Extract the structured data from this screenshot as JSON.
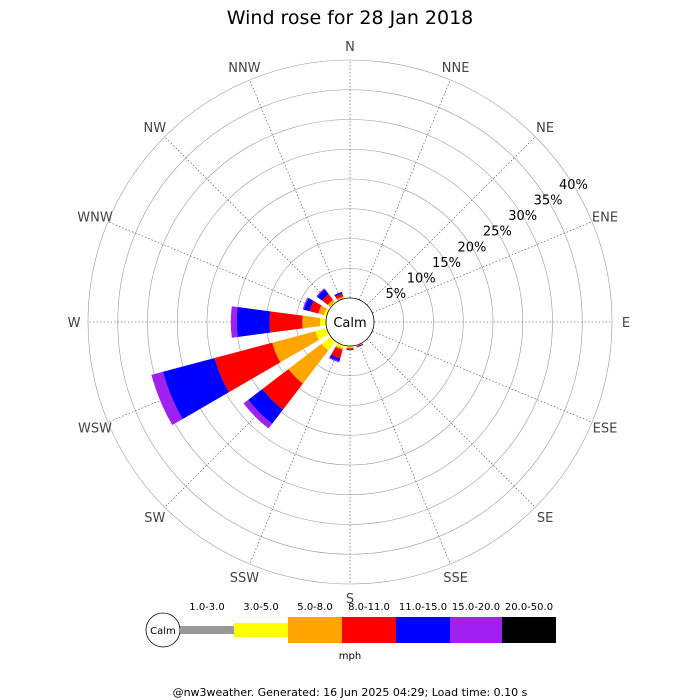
{
  "chart_data": {
    "type": "wind-rose",
    "title": "Wind rose for 28 Jan 2018",
    "calm_label": "Calm",
    "units": "mph",
    "directions": [
      "N",
      "NNE",
      "NE",
      "ENE",
      "E",
      "ESE",
      "SE",
      "SSE",
      "S",
      "SSW",
      "SW",
      "WSW",
      "W",
      "WNW",
      "NW",
      "NNW"
    ],
    "radial_ticks": [
      5,
      10,
      15,
      20,
      25,
      30,
      35,
      40
    ],
    "radial_tick_labels": [
      "5%",
      "10%",
      "15%",
      "20%",
      "25%",
      "30%",
      "35%",
      "40%"
    ],
    "rmax": 40,
    "bins": [
      {
        "label": "1.0-3.0",
        "color": "#999999"
      },
      {
        "label": "3.0-5.0",
        "color": "#ffff00"
      },
      {
        "label": "5.0-8.0",
        "color": "#ffa500"
      },
      {
        "label": "8.0-11.0",
        "color": "#ff0000"
      },
      {
        "label": "11.0-15.0",
        "color": "#0000ff"
      },
      {
        "label": "15.0-20.0",
        "color": "#a020f0"
      },
      {
        "label": "20.0-50.0",
        "color": "#000000"
      }
    ],
    "petals": [
      {
        "direction": "W",
        "values": [
          0,
          1.0,
          3.0,
          5.5,
          5.5,
          1.0,
          0
        ]
      },
      {
        "direction": "WSW",
        "values": [
          0,
          2.0,
          7.5,
          10.0,
          9.0,
          2.0,
          0
        ]
      },
      {
        "direction": "SW",
        "values": [
          0,
          2.0,
          7.0,
          5.5,
          3.0,
          1.0,
          0
        ]
      },
      {
        "direction": "SSW",
        "values": [
          0,
          0.5,
          0.3,
          1.5,
          0.5,
          0.2,
          0
        ]
      },
      {
        "direction": "S",
        "values": [
          0,
          0.2,
          0.2,
          0.2,
          0.1,
          0,
          0
        ]
      },
      {
        "direction": "SSE",
        "values": [
          0,
          0.1,
          0.1,
          0.1,
          0.1,
          0,
          0
        ]
      },
      {
        "direction": "WNW",
        "values": [
          0,
          0.5,
          1.0,
          1.5,
          1.0,
          0.2,
          0
        ]
      },
      {
        "direction": "NW",
        "values": [
          0,
          0.2,
          0.5,
          1.2,
          1.0,
          0.2,
          0
        ]
      },
      {
        "direction": "NNW",
        "values": [
          0,
          0.1,
          0.3,
          0.5,
          0.3,
          0,
          0
        ]
      }
    ]
  },
  "footer": "@nw3weather. Generated: 16 Jun 2025 04:29; Load time: 0.10 s"
}
